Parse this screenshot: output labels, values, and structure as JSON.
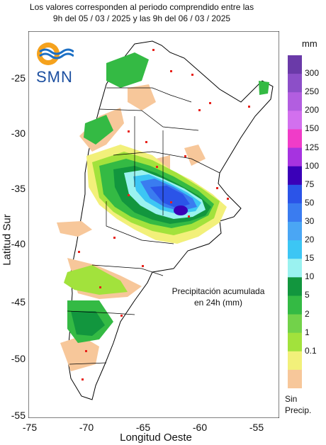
{
  "header": {
    "line1": "Los valores corresponden al periodo comprendido entre las",
    "line2": "9h del 05 / 03 / 2025  y las 9h del 06 / 03 / 2025"
  },
  "logo": {
    "text": "SMN",
    "icon": "smn-sun-wave-logo"
  },
  "axes": {
    "xlabel": "Longitud Oeste",
    "ylabel": "Latitud Sur",
    "xticks": [
      "-75",
      "-70",
      "-65",
      "-60",
      "-55"
    ],
    "yticks": [
      "-25",
      "-30",
      "-35",
      "-40",
      "-45",
      "-50",
      "-55"
    ]
  },
  "annotation": {
    "line1": "Precipitación acumulada",
    "line2": "en 24h (mm)"
  },
  "legend": {
    "unit": "mm",
    "labels": [
      "300",
      "250",
      "200",
      "150",
      "125",
      "100",
      "75",
      "50",
      "30",
      "20",
      "15",
      "10",
      "5",
      "2",
      "1",
      "0.1"
    ],
    "no_precip_line1": "Sin",
    "no_precip_line2": "Precip.",
    "colors": [
      "#6a3aa8",
      "#8c4fc8",
      "#b25ee0",
      "#d270ee",
      "#f03cc8",
      "#a633e0",
      "#3a00b8",
      "#2b54e8",
      "#3a7cf0",
      "#4aa6f4",
      "#3cc6f4",
      "#9af2f0",
      "#12963e",
      "#34ba44",
      "#72d24a",
      "#a2e23c",
      "#f2f07a",
      "#f7c79a"
    ]
  },
  "chart_data": {
    "type": "heatmap",
    "title": "Precipitación acumulada en 24h (mm)",
    "xlabel": "Longitud Oeste",
    "ylabel": "Latitud Sur",
    "xlim": [
      -75,
      -53
    ],
    "ylim": [
      -55,
      -21
    ],
    "levels_mm": [
      0.1,
      1,
      2,
      5,
      10,
      15,
      20,
      30,
      50,
      75,
      100,
      125,
      150,
      200,
      250,
      300
    ],
    "maximum_area": {
      "lon": -61.5,
      "lat": -37.5,
      "approx_mm": 100
    }
  }
}
